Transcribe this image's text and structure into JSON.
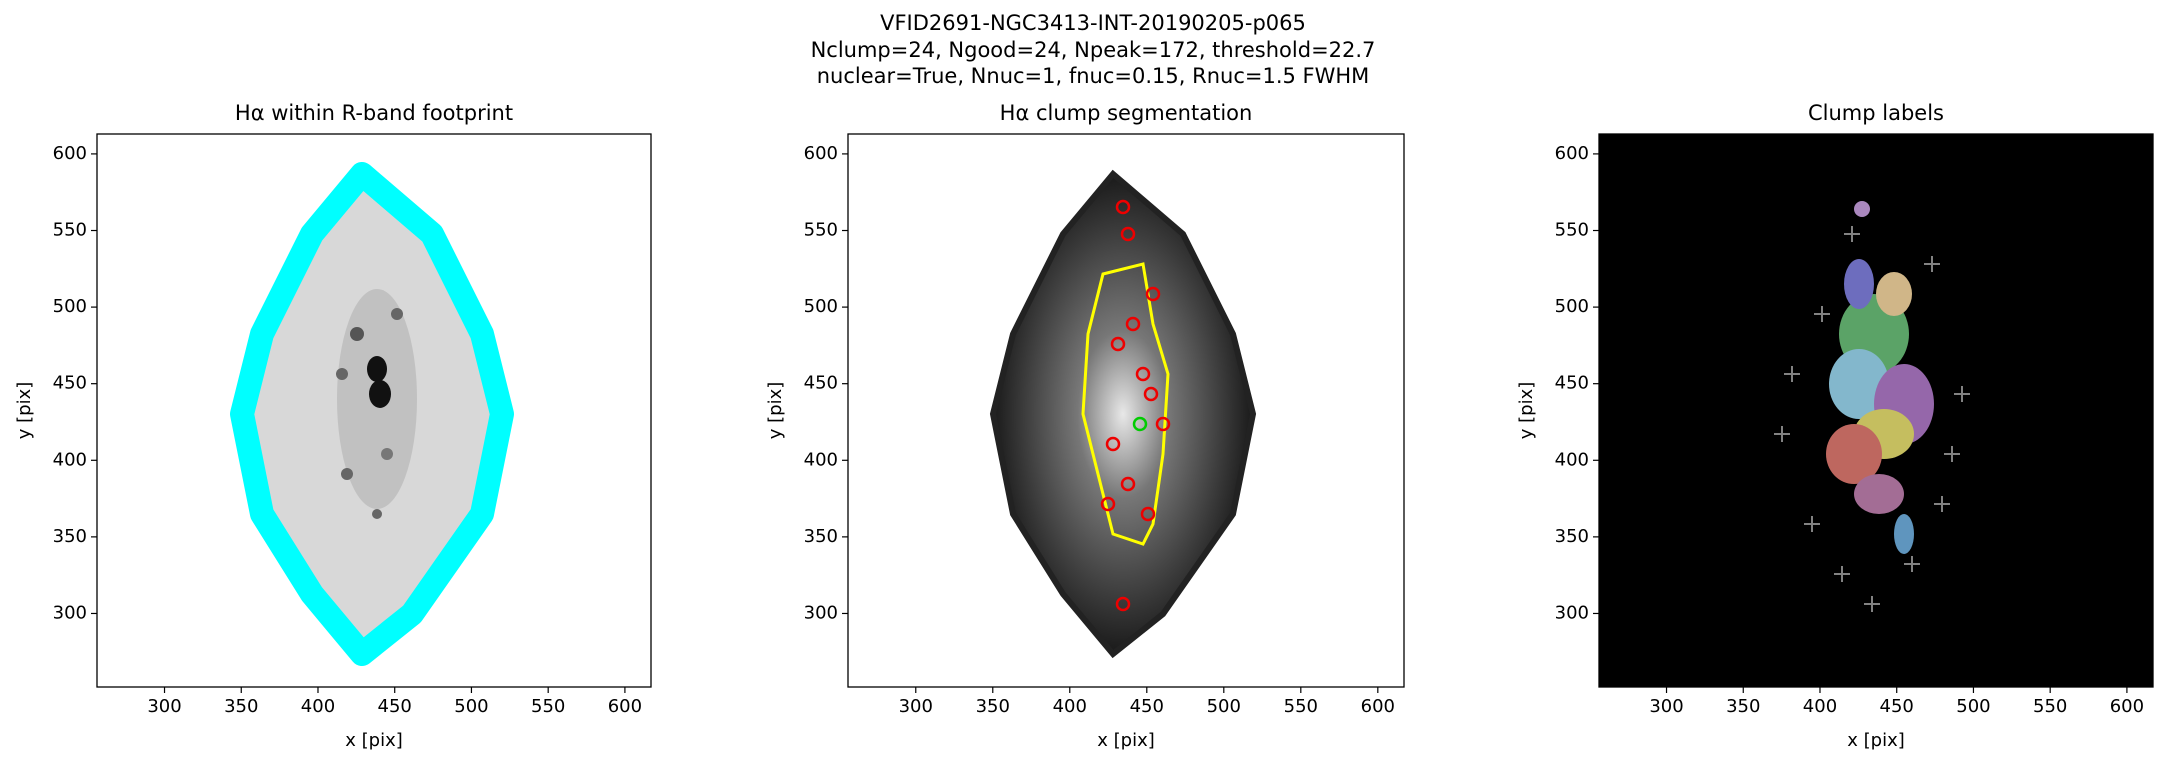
{
  "figure": {
    "title": [
      "VFID2691-NGC3413-INT-20190205-p065",
      "Nclump=24, Ngood=24, Npeak=172, threshold=22.7",
      "nuclear=True, Nnuc=1, fnuc=0.15, Rnuc=1.5 FWHM"
    ]
  },
  "chart_data": [
    {
      "type": "image",
      "title": "Hα within R-band footprint",
      "xlabel": "x [pix]",
      "ylabel": "y [pix]",
      "xlim": [
        256,
        617
      ],
      "ylim": [
        252,
        613
      ],
      "xticks": [
        300,
        350,
        400,
        450,
        500,
        550,
        600
      ],
      "yticks": [
        300,
        350,
        400,
        450,
        500,
        550,
        600
      ]
    },
    {
      "type": "image",
      "title": "Hα clump segmentation",
      "xlabel": "x [pix]",
      "ylabel": "y [pix]",
      "xlim": [
        256,
        617
      ],
      "ylim": [
        252,
        613
      ],
      "xticks": [
        300,
        350,
        400,
        450,
        500,
        550,
        600
      ],
      "yticks": [
        300,
        350,
        400,
        450,
        500,
        550,
        600
      ]
    },
    {
      "type": "image",
      "title": "Clump labels",
      "xlabel": "x [pix]",
      "ylabel": "y [pix]",
      "xlim": [
        256,
        617
      ],
      "ylim": [
        252,
        613
      ],
      "xticks": [
        300,
        350,
        400,
        450,
        500,
        550,
        600
      ],
      "yticks": [
        300,
        350,
        400,
        450,
        500,
        550,
        600
      ]
    }
  ]
}
